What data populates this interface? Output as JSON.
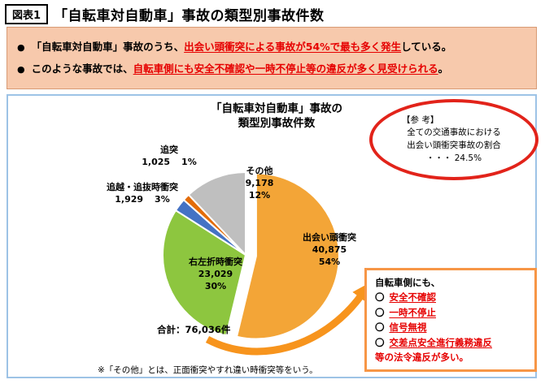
{
  "header": {
    "tag": "図表1",
    "title": "「自転車対自動車」事故の類型別事故件数"
  },
  "highlights": {
    "bullet": "●",
    "items": [
      {
        "pre": "「自転車対自動車」事故のうち、",
        "emphasis": "出会い頭衝突による事故が54%で最も多く発生",
        "post": "している。"
      },
      {
        "pre": "このような事故では、",
        "emphasis": "自転車側にも安全不確認や一時不停止等の違反が多く見受けられる",
        "post": "。"
      }
    ]
  },
  "chart_data": {
    "type": "pie",
    "title": "「自転車対自動車」事故の類型別事故件数",
    "title_lines": [
      "「自転車対自動車」事故の",
      "類型別事故件数"
    ],
    "total": 76036,
    "total_label": "合計：76,036件",
    "slices": [
      {
        "label": "出会い頭衝突",
        "value": 40875,
        "value_label": "40,875",
        "pct": "54%",
        "color": "#F3A537",
        "exploded": true
      },
      {
        "label": "右左折時衝突",
        "value": 23029,
        "value_label": "23,029",
        "pct": "30%",
        "color": "#8DC63F",
        "exploded": false
      },
      {
        "label": "追越・追抜時衝突",
        "value": 1929,
        "value_label": "1,929",
        "pct": "3%",
        "color": "#4472C4",
        "exploded": false
      },
      {
        "label": "追突",
        "value": 1025,
        "value_label": "1,025",
        "pct": "1%",
        "color": "#E36C09",
        "exploded": false
      },
      {
        "label": "その他",
        "value": 9178,
        "value_label": "9,178",
        "pct": "12%",
        "color": "#BFBFBF",
        "exploded": false
      }
    ]
  },
  "reference": {
    "heading": "【参 考】",
    "lines": [
      "全ての交通事故における",
      "出会い頭衝突事故の割合",
      "・・・ 24.5%"
    ]
  },
  "violations": {
    "intro": "自転車側にも、",
    "marker": "〇",
    "items": [
      "安全不確認",
      "一時不停止",
      "信号無視",
      "交差点安全進行義務違反"
    ],
    "outro": "等の法令違反が多い。"
  },
  "footnote": "※「その他」とは、正面衝突やすれ違い時衝突等をいう。"
}
